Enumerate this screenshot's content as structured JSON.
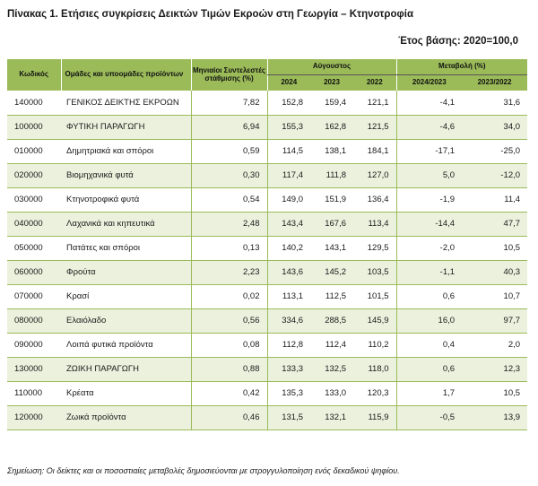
{
  "title": "Πίνακας 1. Ετήσιες συγκρίσεις Δεικτών Τιμών Εκροών στη Γεωργία – Κτηνοτροφία",
  "base_year": "Έτος βάσης: 2020=100,0",
  "headers": {
    "code": "Κωδικός",
    "groups": "Ομάδες και υποομάδες προϊόντων",
    "weights": "Μηνιαίοι Συντελεστές στάθμισης (%)",
    "august": "Αύγουστος",
    "change": "Μεταβολή (%)",
    "y2024": "2024",
    "y2023": "2023",
    "y2022": "2022",
    "c1": "2024/2023",
    "c2": "2023/2022"
  },
  "rows": [
    {
      "code": "140000",
      "name": "ΓΕΝΙΚΟΣ ΔΕΙΚΤΗΣ ΕΚΡΟΩΝ",
      "weight": "7,82",
      "y2024": "152,8",
      "y2023": "159,4",
      "y2022": "121,1",
      "c1": "-4,1",
      "c2": "31,6"
    },
    {
      "code": "100000",
      "name": "ΦΥΤΙΚΗ ΠΑΡΑΓΩΓΗ",
      "weight": "6,94",
      "y2024": "155,3",
      "y2023": "162,8",
      "y2022": "121,5",
      "c1": "-4,6",
      "c2": "34,0"
    },
    {
      "code": "010000",
      "name": "Δημητριακά και σπόροι",
      "weight": "0,59",
      "y2024": "114,5",
      "y2023": "138,1",
      "y2022": "184,1",
      "c1": "-17,1",
      "c2": "-25,0"
    },
    {
      "code": "020000",
      "name": "Βιομηχανικά φυτά",
      "weight": "0,30",
      "y2024": "117,4",
      "y2023": "111,8",
      "y2022": "127,0",
      "c1": "5,0",
      "c2": "-12,0"
    },
    {
      "code": "030000",
      "name": "Κτηνοτροφικά φυτά",
      "weight": "0,54",
      "y2024": "149,0",
      "y2023": "151,9",
      "y2022": "136,4",
      "c1": "-1,9",
      "c2": "11,4"
    },
    {
      "code": "040000",
      "name": "Λαχανικά και κηπευτικά",
      "weight": "2,48",
      "y2024": "143,4",
      "y2023": "167,6",
      "y2022": "113,4",
      "c1": "-14,4",
      "c2": "47,7"
    },
    {
      "code": "050000",
      "name": "Πατάτες και σπόροι",
      "weight": "0,13",
      "y2024": "140,2",
      "y2023": "143,1",
      "y2022": "129,5",
      "c1": "-2,0",
      "c2": "10,5"
    },
    {
      "code": "060000",
      "name": "Φρούτα",
      "weight": "2,23",
      "y2024": "143,6",
      "y2023": "145,2",
      "y2022": "103,5",
      "c1": "-1,1",
      "c2": "40,3"
    },
    {
      "code": "070000",
      "name": "Κρασί",
      "weight": "0,02",
      "y2024": "113,1",
      "y2023": "112,5",
      "y2022": "101,5",
      "c1": "0,6",
      "c2": "10,7"
    },
    {
      "code": "080000",
      "name": "Ελαιόλαδο",
      "weight": "0,56",
      "y2024": "334,6",
      "y2023": "288,5",
      "y2022": "145,9",
      "c1": "16,0",
      "c2": "97,7"
    },
    {
      "code": "090000",
      "name": "Λοιπά φυτικά προϊόντα",
      "weight": "0,08",
      "y2024": "112,8",
      "y2023": "112,4",
      "y2022": "110,2",
      "c1": "0,4",
      "c2": "2,0"
    },
    {
      "code": "130000",
      "name": "ΖΩΙΚΗ ΠΑΡΑΓΩΓΗ",
      "weight": "0,88",
      "y2024": "133,3",
      "y2023": "132,5",
      "y2022": "118,0",
      "c1": "0,6",
      "c2": "12,3"
    },
    {
      "code": "110000",
      "name": "Κρέατα",
      "weight": "0,42",
      "y2024": "135,3",
      "y2023": "133,0",
      "y2022": "120,3",
      "c1": "1,7",
      "c2": "10,5"
    },
    {
      "code": "120000",
      "name": "Ζωικά προϊόντα",
      "weight": "0,46",
      "y2024": "131,5",
      "y2023": "132,1",
      "y2022": "115,9",
      "c1": "-0,5",
      "c2": "13,9"
    }
  ],
  "note": "Σημείωση: Οι δείκτες και οι ποσοστιαίες μεταβολές δημοσιεύονται με στρογγυλοποίηση ενός δεκαδικού ψηφίου.",
  "colors": {
    "header_bg": "#9bbb59",
    "alt_row_bg": "#ebf1dd",
    "rule": "#9bbb59"
  }
}
